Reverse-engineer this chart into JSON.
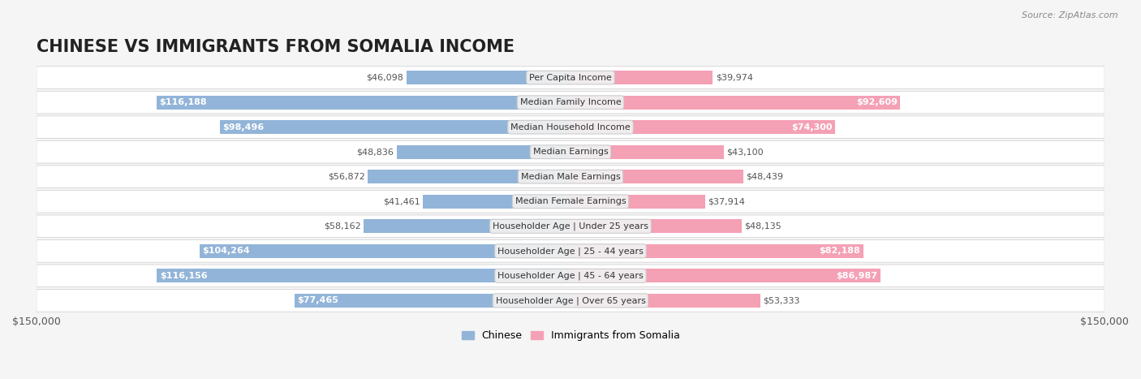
{
  "title": "CHINESE VS IMMIGRANTS FROM SOMALIA INCOME",
  "source": "Source: ZipAtlas.com",
  "categories": [
    "Per Capita Income",
    "Median Family Income",
    "Median Household Income",
    "Median Earnings",
    "Median Male Earnings",
    "Median Female Earnings",
    "Householder Age | Under 25 years",
    "Householder Age | 25 - 44 years",
    "Householder Age | 45 - 64 years",
    "Householder Age | Over 65 years"
  ],
  "chinese_values": [
    46098,
    116188,
    98496,
    48836,
    56872,
    41461,
    58162,
    104264,
    116156,
    77465
  ],
  "somalia_values": [
    39974,
    92609,
    74300,
    43100,
    48439,
    37914,
    48135,
    82188,
    86987,
    53333
  ],
  "max_value": 150000,
  "chinese_color": "#92b4d8",
  "chinese_dark_color": "#6699cc",
  "somalia_color": "#f4a0b5",
  "somalia_dark_color": "#e8648a",
  "bg_color": "#f5f5f5",
  "row_bg_color": "#ffffff",
  "label_bg_color": "#f0f0f0",
  "label_border_color": "#cccccc",
  "title_fontsize": 15,
  "tick_fontsize": 9,
  "bar_label_fontsize": 8,
  "category_fontsize": 8,
  "legend_fontsize": 9,
  "source_fontsize": 8
}
